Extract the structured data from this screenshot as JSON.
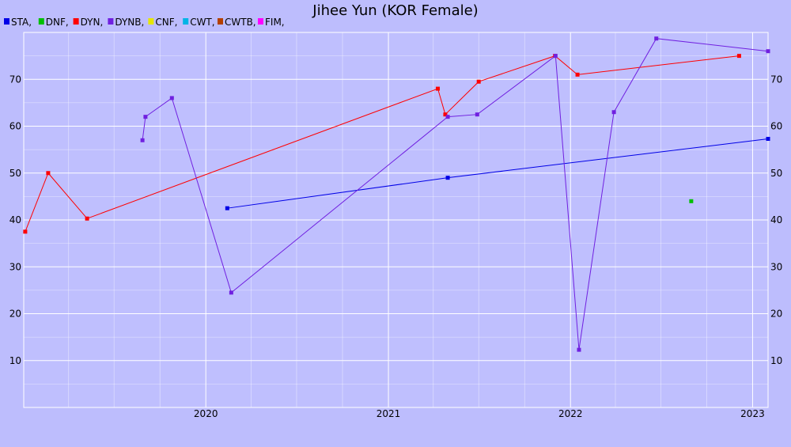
{
  "chart_data": {
    "type": "line",
    "title": "Jihee Yun (KOR Female)",
    "xlabel": "",
    "ylabel": "",
    "xlim": [
      "2019-01-01",
      "2023-02-01"
    ],
    "ylim": [
      0,
      80
    ],
    "x_ticks": [
      "2020",
      "2021",
      "2022",
      "2023"
    ],
    "y_ticks": [
      "10",
      "20",
      "30",
      "40",
      "50",
      "60",
      "70"
    ],
    "grid": true,
    "legend_position": "top-left",
    "series": [
      {
        "name": "STA,",
        "color": "#0000e6",
        "points": [
          [
            "2020-02-13",
            42.5
          ],
          [
            "2021-04-30",
            49
          ],
          [
            "2023-02-01",
            57.3
          ]
        ]
      },
      {
        "name": "DNF,",
        "color": "#00c000",
        "points": [
          [
            "2022-08-31",
            44
          ]
        ]
      },
      {
        "name": "DYN,",
        "color": "#ff0000",
        "points": [
          [
            "2019-01-04",
            37.5
          ],
          [
            "2019-02-19",
            50
          ],
          [
            "2019-05-08",
            40.3
          ],
          [
            "2021-04-10",
            68
          ],
          [
            "2021-04-25",
            62.5
          ],
          [
            "2021-07-01",
            69.5
          ],
          [
            "2021-12-01",
            75
          ],
          [
            "2022-01-15",
            71
          ],
          [
            "2022-12-05",
            75
          ]
        ]
      },
      {
        "name": "DYNB,",
        "color": "#7020e0",
        "points": [
          [
            "2019-08-27",
            57
          ],
          [
            "2019-09-02",
            62
          ],
          [
            "2019-10-25",
            66
          ],
          [
            "2020-02-21",
            24.5
          ],
          [
            "2021-04-30",
            62
          ],
          [
            "2021-06-28",
            62.5
          ],
          [
            "2021-12-02",
            75
          ],
          [
            "2022-01-18",
            12.3
          ],
          [
            "2022-03-29",
            63
          ],
          [
            "2022-06-22",
            78.7
          ],
          [
            "2023-02-01",
            76
          ]
        ]
      },
      {
        "name": "CNF,",
        "color": "#e6e600",
        "points": []
      },
      {
        "name": "CWT,",
        "color": "#00b4e6",
        "points": []
      },
      {
        "name": "CWTB,",
        "color": "#b44000",
        "points": []
      },
      {
        "name": "FIM,",
        "color": "#ff00ff",
        "points": []
      }
    ]
  }
}
